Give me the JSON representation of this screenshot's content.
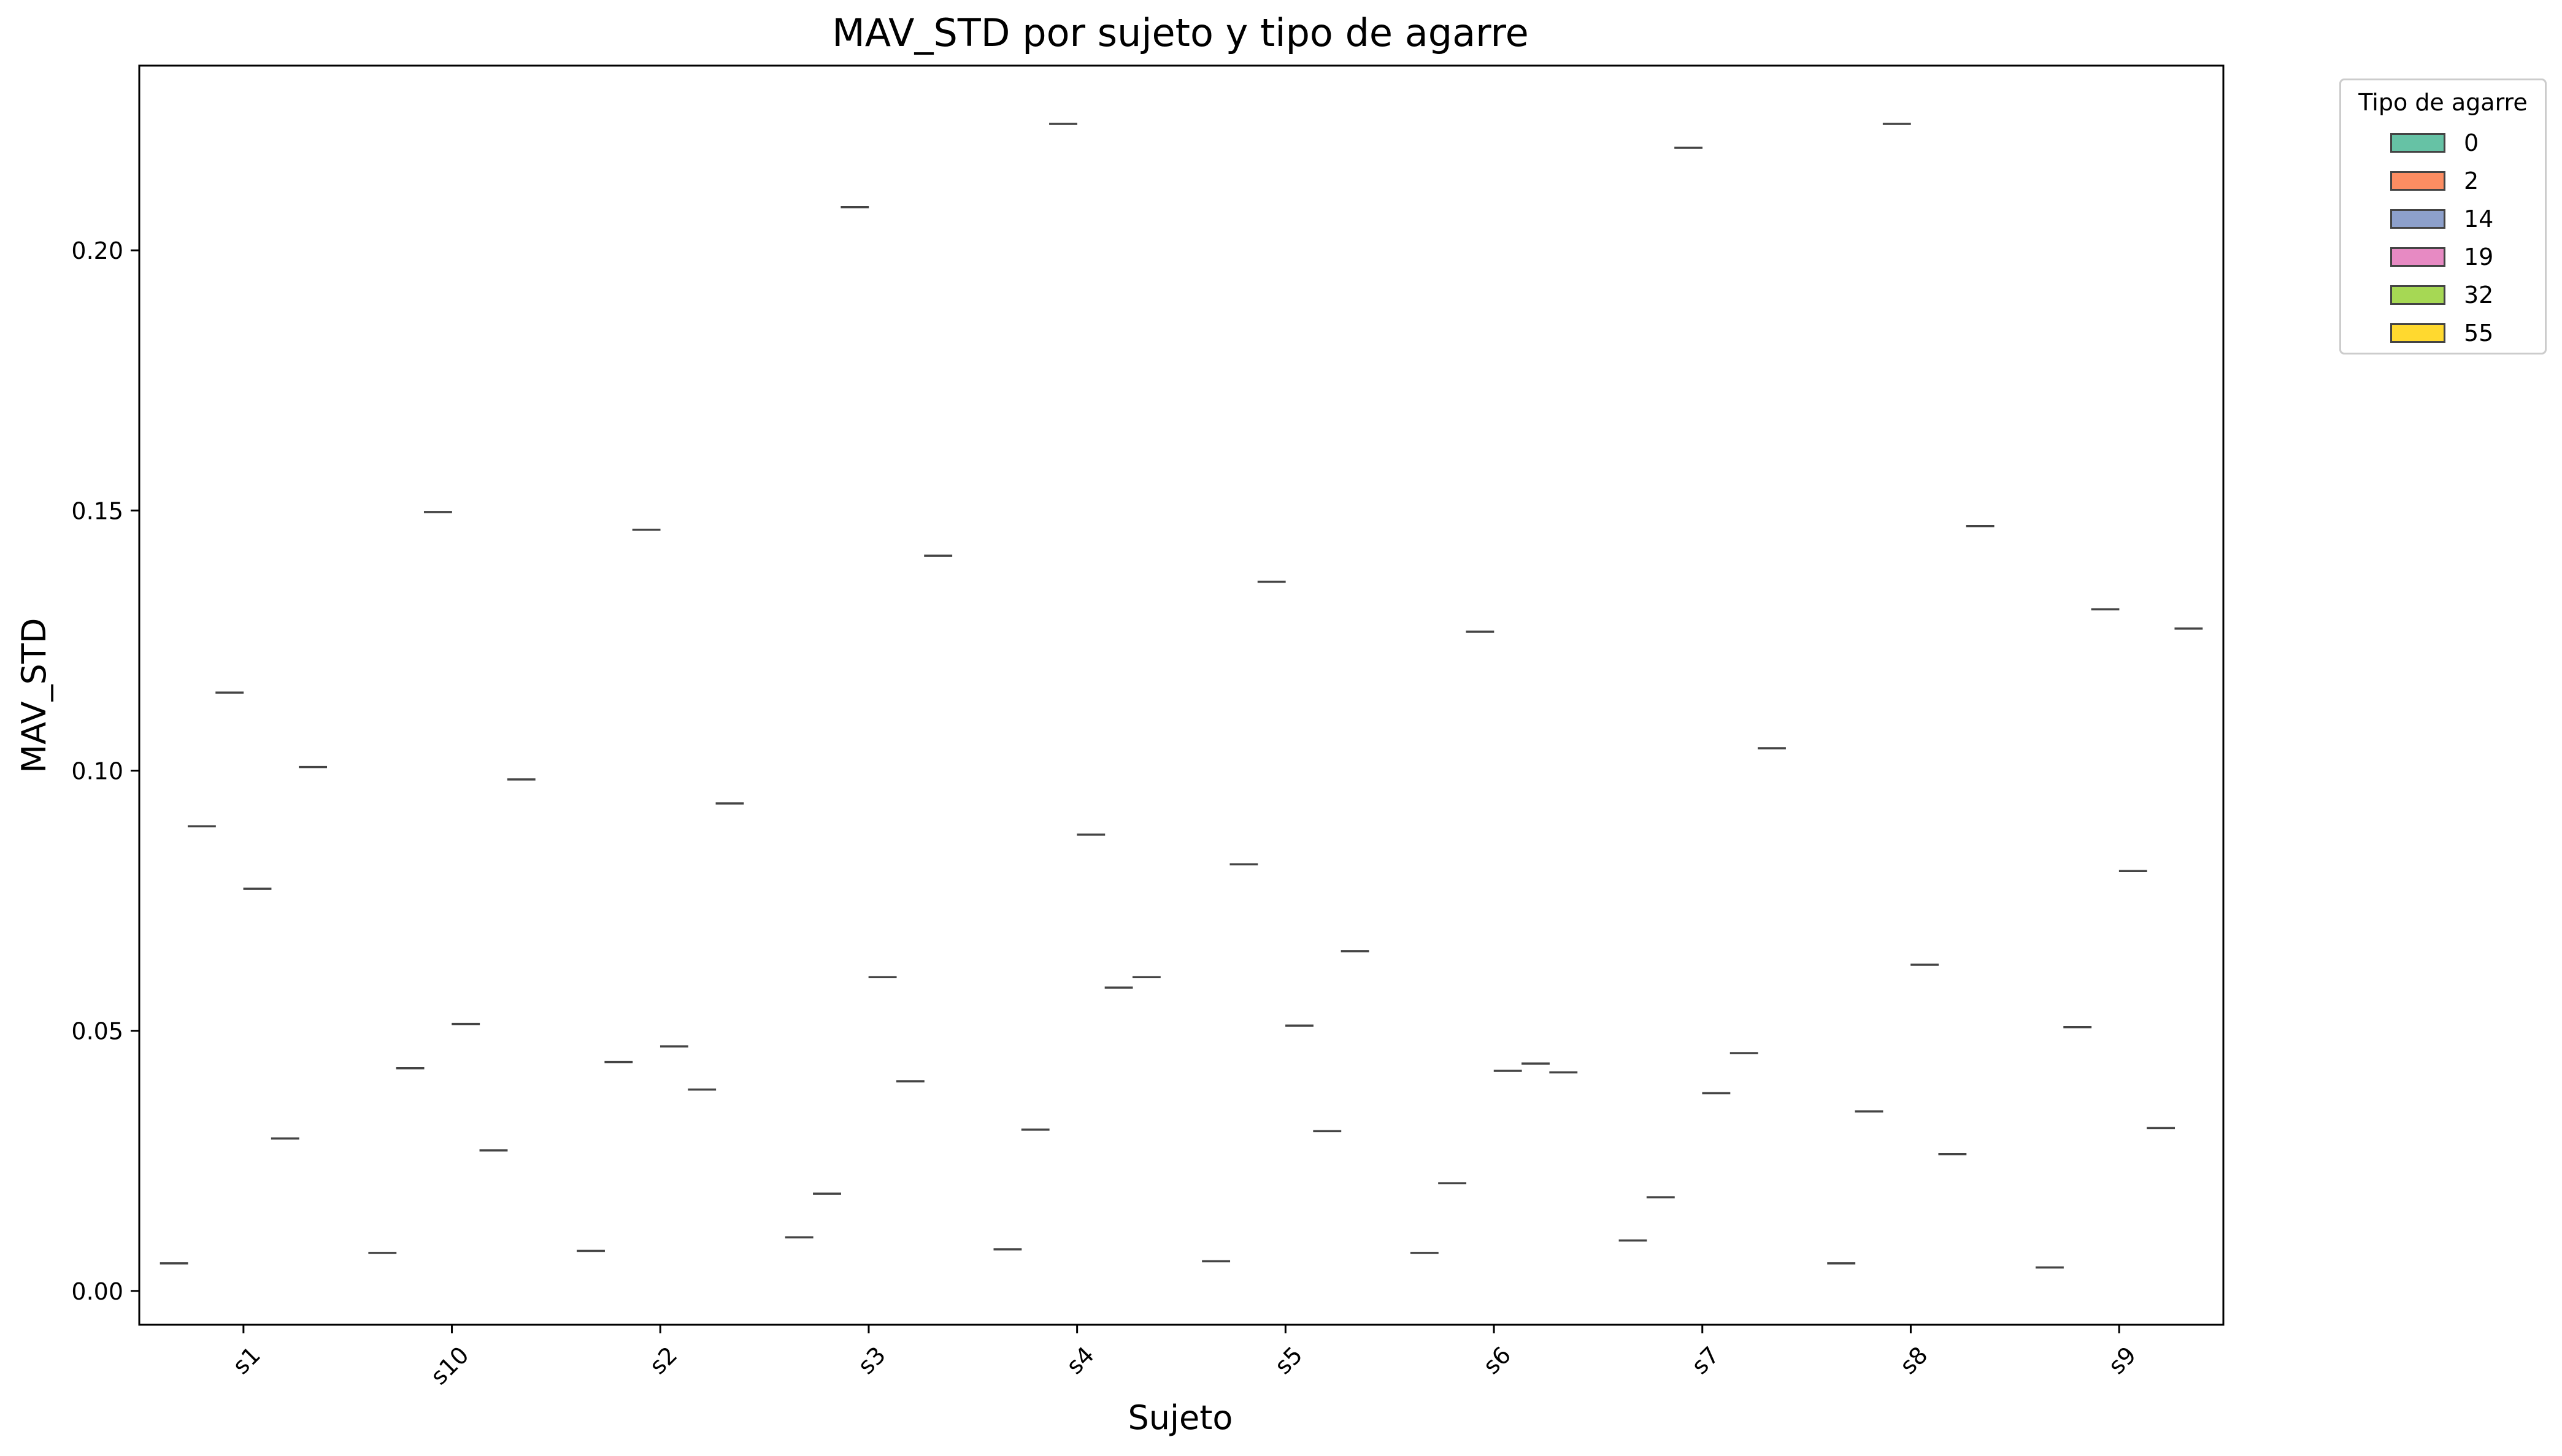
{
  "chart_data": {
    "type": "violin",
    "title": "MAV_STD por sujeto y tipo de agarre",
    "xlabel": "Sujeto",
    "ylabel": "MAV_STD",
    "categories": [
      "s1",
      "s10",
      "s2",
      "s3",
      "s4",
      "s5",
      "s6",
      "s7",
      "s8",
      "s9"
    ],
    "ylim": [
      -0.0065,
      0.2355
    ],
    "yticks": [
      "0.00",
      "0.05",
      "0.10",
      "0.15",
      "0.20"
    ],
    "grid": false,
    "legend": {
      "title": "Tipo de agarre",
      "placement": "outside-top-right"
    },
    "series": [
      {
        "name": "0",
        "color": "#66c2a5",
        "values": [
          0.0053,
          0.0073,
          0.0077,
          0.0103,
          0.008,
          0.0057,
          0.0073,
          0.0097,
          0.0053,
          0.0045
        ]
      },
      {
        "name": "2",
        "color": "#fc8d62",
        "values": [
          0.0893,
          0.0428,
          0.044,
          0.0187,
          0.031,
          0.082,
          0.0207,
          0.018,
          0.0345,
          0.0507
        ]
      },
      {
        "name": "14",
        "color": "#8da0cb",
        "values": [
          0.115,
          0.1497,
          0.1463,
          0.2083,
          0.2243,
          0.1363,
          0.1267,
          0.2197,
          0.2243,
          0.131
        ]
      },
      {
        "name": "19",
        "color": "#e78ac3",
        "values": [
          0.0773,
          0.0513,
          0.047,
          0.0603,
          0.0877,
          0.051,
          0.0423,
          0.038,
          0.0627,
          0.0807
        ]
      },
      {
        "name": "32",
        "color": "#a6d854",
        "values": [
          0.0293,
          0.027,
          0.0387,
          0.0403,
          0.0583,
          0.0307,
          0.0437,
          0.0457,
          0.0263,
          0.0313
        ]
      },
      {
        "name": "55",
        "color": "#ffd92f",
        "values": [
          0.1007,
          0.0983,
          0.0937,
          0.1413,
          0.0603,
          0.0653,
          0.042,
          0.1043,
          0.147,
          0.1273
        ]
      }
    ]
  }
}
